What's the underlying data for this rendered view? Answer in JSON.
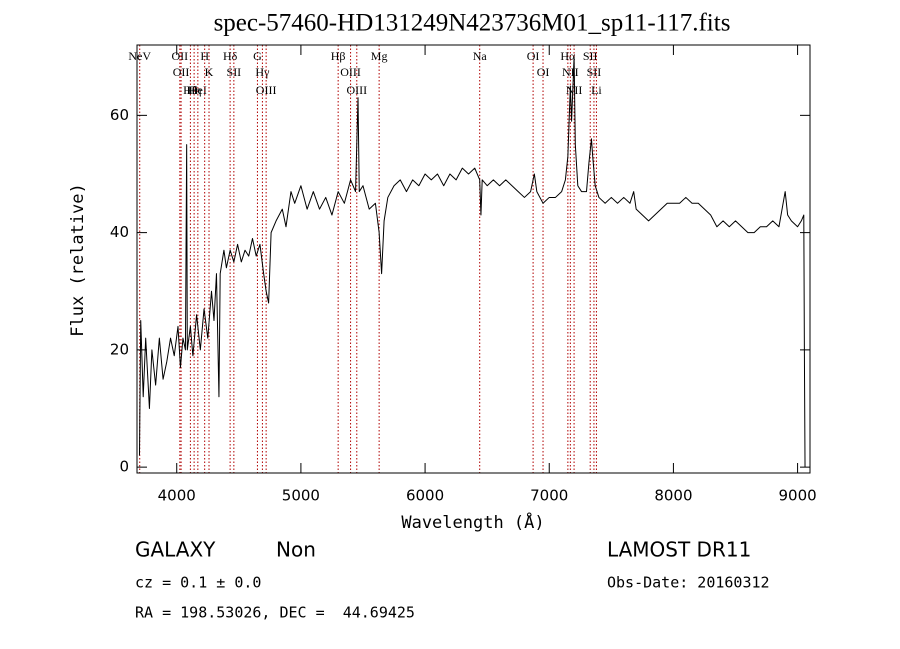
{
  "chart_data": {
    "type": "line",
    "title": "spec-57460-HD131249N423736M01_sp11-117.fits",
    "x_label": "Wavelength (Å)",
    "y_label": "Flux (relative)",
    "color": "#000000",
    "line_color": "#b00000",
    "xlim": [
      3680,
      9100
    ],
    "ylim": [
      -1,
      72
    ],
    "xticks": [
      4000,
      5000,
      6000,
      7000,
      8000,
      9000
    ],
    "yticks": [
      0,
      20,
      40,
      60
    ],
    "x": [
      3700,
      3710,
      3730,
      3750,
      3780,
      3800,
      3830,
      3860,
      3890,
      3920,
      3950,
      3980,
      4010,
      4030,
      4050,
      4070,
      4080,
      4085,
      4110,
      4130,
      4160,
      4190,
      4220,
      4250,
      4280,
      4300,
      4320,
      4340,
      4350,
      4380,
      4400,
      4430,
      4460,
      4490,
      4520,
      4550,
      4580,
      4610,
      4640,
      4670,
      4700,
      4720,
      4740,
      4760,
      4800,
      4850,
      4880,
      4920,
      4950,
      5000,
      5050,
      5100,
      5150,
      5200,
      5250,
      5300,
      5350,
      5400,
      5440,
      5460,
      5470,
      5500,
      5550,
      5600,
      5630,
      5650,
      5670,
      5700,
      5750,
      5800,
      5850,
      5900,
      5950,
      6000,
      6050,
      6100,
      6150,
      6200,
      6250,
      6300,
      6350,
      6400,
      6440,
      6450,
      6460,
      6500,
      6550,
      6600,
      6650,
      6700,
      6750,
      6800,
      6850,
      6880,
      6900,
      6950,
      7000,
      7050,
      7100,
      7130,
      7150,
      7170,
      7180,
      7200,
      7210,
      7230,
      7260,
      7290,
      7300,
      7320,
      7340,
      7350,
      7370,
      7400,
      7450,
      7500,
      7550,
      7600,
      7650,
      7680,
      7700,
      7750,
      7800,
      7850,
      7900,
      7950,
      8000,
      8050,
      8100,
      8150,
      8200,
      8250,
      8300,
      8350,
      8400,
      8450,
      8500,
      8550,
      8600,
      8650,
      8700,
      8750,
      8800,
      8850,
      8900,
      8920,
      8950,
      9000,
      9030,
      9050,
      9055,
      9060
    ],
    "values": [
      2,
      25,
      12,
      22,
      10,
      20,
      14,
      22,
      15,
      18,
      22,
      19,
      24,
      17,
      22,
      20,
      55,
      20,
      24,
      19,
      26,
      20,
      27,
      22,
      30,
      25,
      33,
      12,
      33,
      37,
      34,
      37,
      35,
      38,
      35,
      37,
      36,
      39,
      36,
      38,
      33,
      30,
      28,
      40,
      42,
      44,
      41,
      47,
      45,
      48,
      44,
      47,
      44,
      46,
      43,
      47,
      45,
      49,
      47,
      63,
      47,
      48,
      44,
      45,
      40,
      33,
      42,
      46,
      48,
      49,
      47,
      49,
      48,
      50,
      49,
      50,
      48,
      50,
      49,
      51,
      50,
      51,
      49,
      43,
      49,
      48,
      49,
      48,
      49,
      48,
      47,
      46,
      47,
      50,
      47,
      45,
      46,
      46,
      47,
      49,
      53,
      65,
      59,
      70,
      55,
      48,
      47,
      47,
      47,
      52,
      56,
      53,
      48,
      46,
      45,
      46,
      45,
      46,
      45,
      47,
      44,
      43,
      42,
      43,
      44,
      45,
      45,
      45,
      46,
      45,
      45,
      44,
      43,
      41,
      42,
      41,
      42,
      41,
      40,
      40,
      41,
      41,
      42,
      41,
      47,
      43,
      42,
      41,
      42,
      43,
      19,
      0
    ],
    "lines": [
      {
        "label": "NeV",
        "x": 3702
      },
      {
        "label": "OII",
        "x": 4025
      },
      {
        "label": "OII",
        "x": 4035
      },
      {
        "label": "Hθ",
        "x": 4110
      },
      {
        "label": "Hη",
        "x": 4140
      },
      {
        "label": "HeI",
        "x": 4170
      },
      {
        "label": "H",
        "x": 4225
      },
      {
        "label": "K",
        "x": 4260
      },
      {
        "label": "Hδ",
        "x": 4430
      },
      {
        "label": "SII",
        "x": 4460
      },
      {
        "label": "G",
        "x": 4650
      },
      {
        "label": "Hγ",
        "x": 4690
      },
      {
        "label": "OIII",
        "x": 4720
      },
      {
        "label": "Hβ",
        "x": 5300
      },
      {
        "label": "OIII",
        "x": 5400
      },
      {
        "label": "OIII",
        "x": 5450
      },
      {
        "label": "Mg",
        "x": 5630
      },
      {
        "label": "Na",
        "x": 6440
      },
      {
        "label": "OI",
        "x": 6870
      },
      {
        "label": "OI",
        "x": 6950
      },
      {
        "label": "Hα",
        "x": 7150
      },
      {
        "label": "NII",
        "x": 7170
      },
      {
        "label": "NII",
        "x": 7200
      },
      {
        "label": "SII",
        "x": 7330
      },
      {
        "label": "SII",
        "x": 7360
      },
      {
        "label": "Li",
        "x": 7380
      }
    ],
    "info": {
      "class": "GALAXY",
      "subclass": "Non",
      "survey": "LAMOST DR11",
      "cz": "cz = 0.1 ± 0.0",
      "obs_date": "Obs-Date: 20160312",
      "coords": "RA = 198.53026, DEC =  44.69425"
    }
  }
}
